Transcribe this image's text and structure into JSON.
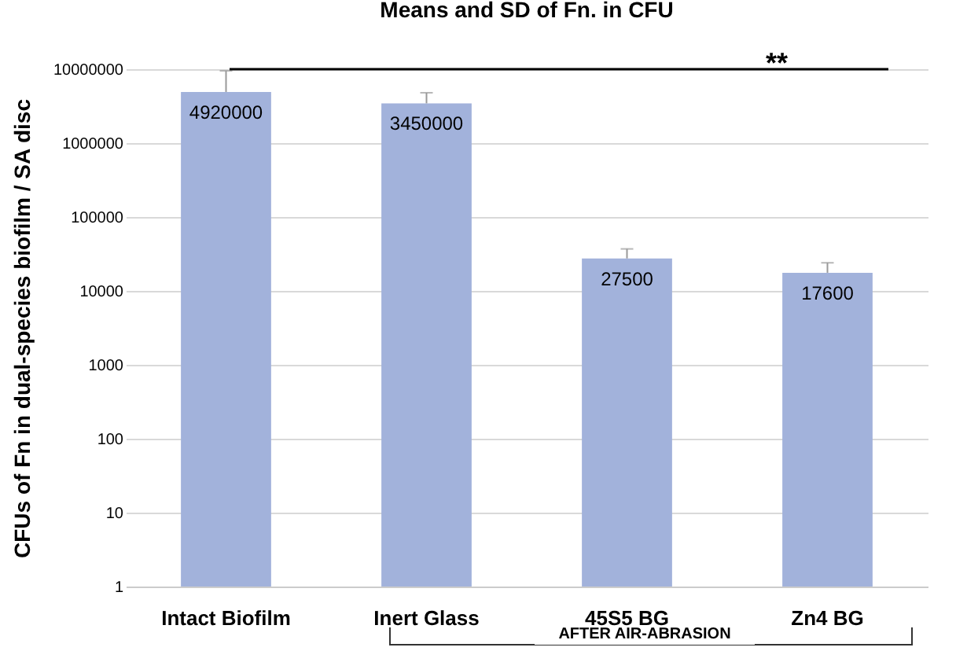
{
  "chart_data": {
    "type": "bar",
    "title": "Means and SD of Fn. in CFU",
    "ylabel": "CFUs of Fn in dual-species biofilm / SA disc",
    "categories": [
      "Intact Biofilm",
      "Inert Glass",
      "45S5 BG",
      "Zn4 BG"
    ],
    "values": [
      4920000,
      3450000,
      27500,
      17600
    ],
    "errors": [
      [
        4920000,
        9500000
      ],
      [
        3450000,
        4800000
      ],
      [
        27500,
        37000
      ],
      [
        17600,
        24000
      ]
    ],
    "color": "#a2b2db",
    "data_labels": true,
    "log": "y",
    "ylim": [
      1,
      10000000
    ],
    "yticks": [
      1,
      10,
      100,
      1000,
      10000,
      100000,
      1000000,
      10000000
    ],
    "grid": "y",
    "annotations": [
      "**",
      "AFTER AIR-ABRASION"
    ]
  }
}
